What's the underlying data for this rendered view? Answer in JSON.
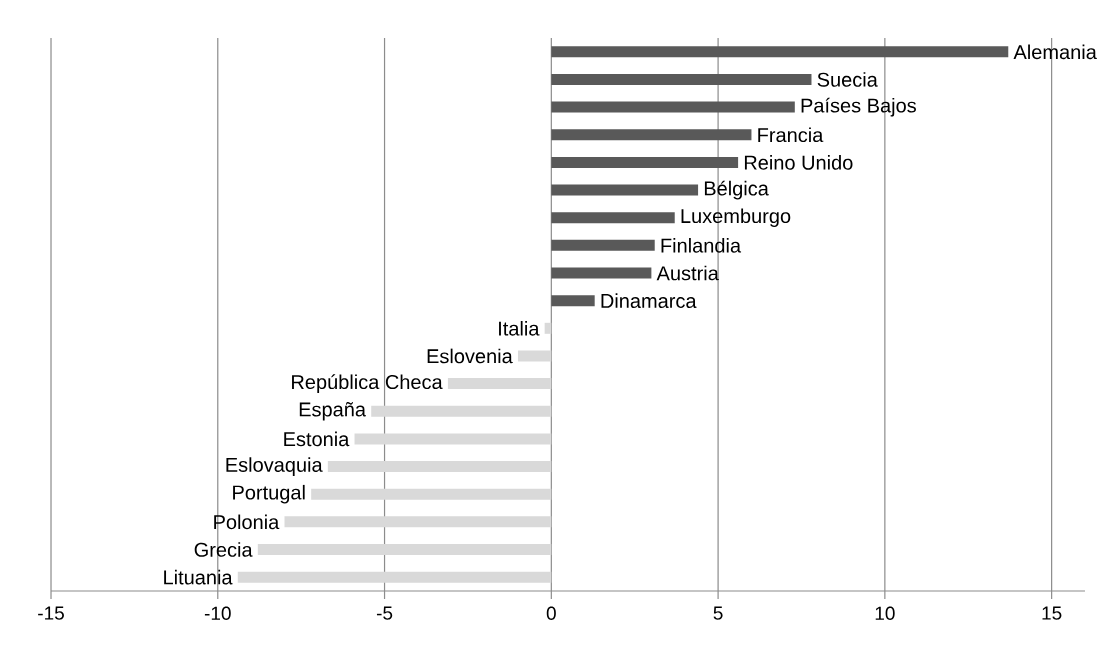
{
  "chart_data": {
    "type": "bar",
    "orientation": "horizontal",
    "categories": [
      "Alemania",
      "Suecia",
      "Países Bajos",
      "Francia",
      "Reino Unido",
      "Bélgica",
      "Luxemburgo",
      "Finlandia",
      "Austria",
      "Dinamarca",
      "Italia",
      "Eslovenia",
      "República Checa",
      "España",
      "Estonia",
      "Eslovaquia",
      "Portugal",
      "Polonia",
      "Grecia",
      "Lituania"
    ],
    "values": [
      13.7,
      7.8,
      7.3,
      6.0,
      5.6,
      4.4,
      3.7,
      3.1,
      3.0,
      1.3,
      -0.2,
      -1.0,
      -3.1,
      -5.4,
      -5.9,
      -6.7,
      -7.2,
      -8.0,
      -8.8,
      -9.4
    ],
    "colors": [
      "#595959",
      "#595959",
      "#595959",
      "#595959",
      "#595959",
      "#595959",
      "#595959",
      "#595959",
      "#595959",
      "#595959",
      "#d9d9d9",
      "#d9d9d9",
      "#d9d9d9",
      "#d9d9d9",
      "#d9d9d9",
      "#d9d9d9",
      "#d9d9d9",
      "#d9d9d9",
      "#d9d9d9",
      "#d9d9d9"
    ],
    "xlim": [
      -15,
      16
    ],
    "xticks": [
      -15,
      -10,
      -5,
      0,
      5,
      10,
      15
    ],
    "grid": "x",
    "tick_labels": "x"
  }
}
